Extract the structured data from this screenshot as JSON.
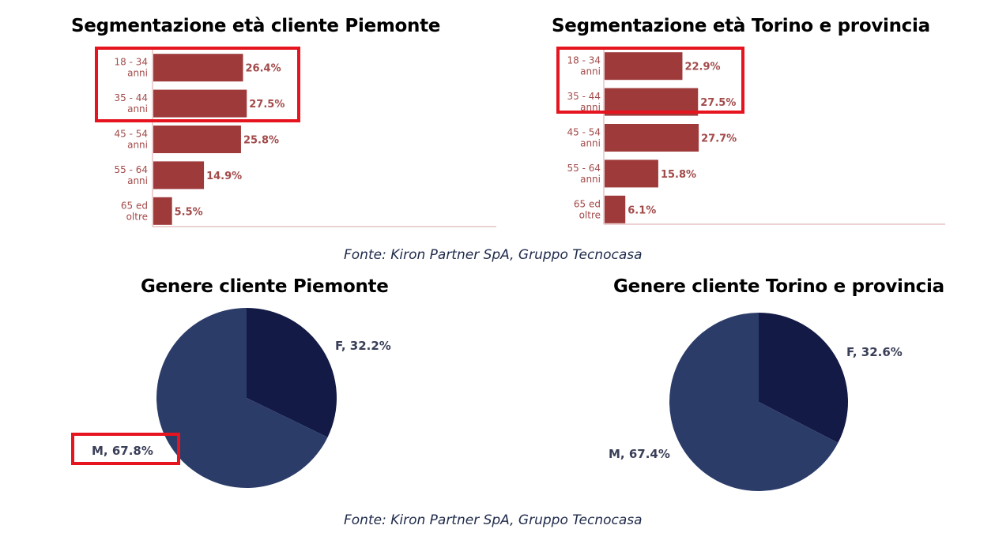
{
  "colors": {
    "bar": "#9e3a3a",
    "axis": "#d9a5a5",
    "pie_f": "#121a45",
    "pie_m": "#2b3c69",
    "highlight": "#e6141e"
  },
  "source_top": "Fonte: Kiron Partner SpA, Gruppo Tecnocasa",
  "source_bottom": "Fonte: Kiron Partner SpA, Gruppo Tecnocasa",
  "chart_data": [
    {
      "type": "bar",
      "orientation": "horizontal",
      "title": "Segmentazione età cliente Piemonte",
      "categories": [
        [
          "18 - 34",
          "anni"
        ],
        [
          "35 - 44",
          "anni"
        ],
        [
          "45 - 54",
          "anni"
        ],
        [
          "55 - 64",
          "anni"
        ],
        [
          "65 ed",
          "oltre"
        ]
      ],
      "values": [
        26.4,
        27.5,
        25.8,
        14.9,
        5.5
      ],
      "value_labels": [
        "26.4%",
        "27.5%",
        "25.8%",
        "14.9%",
        "5.5%"
      ],
      "xlim": [
        0,
        100
      ],
      "highlighted_categories": [
        0,
        1
      ]
    },
    {
      "type": "bar",
      "orientation": "horizontal",
      "title": "Segmentazione età Torino e provincia",
      "categories": [
        [
          "18 - 34",
          "anni"
        ],
        [
          "35 - 44",
          "anni"
        ],
        [
          "45 - 54",
          "anni"
        ],
        [
          "55 - 64",
          "anni"
        ],
        [
          "65 ed",
          "oltre"
        ]
      ],
      "values": [
        22.9,
        27.5,
        27.7,
        15.8,
        6.1
      ],
      "value_labels": [
        "22.9%",
        "27.5%",
        "27.7%",
        "15.8%",
        "6.1%"
      ],
      "xlim": [
        0,
        100
      ],
      "highlighted_categories": [
        0,
        1
      ]
    },
    {
      "type": "pie",
      "title": "Genere cliente Piemonte",
      "slices": [
        {
          "label": "F, 32.2%",
          "value": 32.2,
          "color": "#121a45"
        },
        {
          "label": "M, 67.8%",
          "value": 67.8,
          "color": "#2b3c69"
        }
      ],
      "highlighted_labels": [
        1
      ]
    },
    {
      "type": "pie",
      "title": "Genere cliente Torino e provincia",
      "slices": [
        {
          "label": "F, 32.6%",
          "value": 32.6,
          "color": "#121a45"
        },
        {
          "label": "M, 67.4%",
          "value": 67.4,
          "color": "#2b3c69"
        }
      ],
      "highlighted_labels": []
    }
  ]
}
